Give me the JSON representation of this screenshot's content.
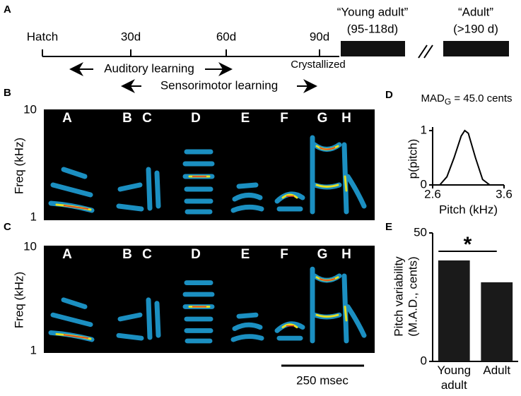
{
  "panel_labels": [
    "A",
    "B",
    "C",
    "D",
    "E"
  ],
  "timeline": {
    "hatch": "Hatch",
    "ticks": [
      "30d",
      "60d",
      "90d"
    ],
    "young_adult": [
      "“Young adult”",
      "(95-118d)"
    ],
    "adult": [
      "“Adult”",
      "(>190 d)"
    ],
    "crystallized": "Crystallized",
    "auditory": "Auditory learning",
    "sensorimotor": "Sensorimotor learning"
  },
  "spectrograms": {
    "syllables": [
      "A",
      "B",
      "C",
      "D",
      "E",
      "F",
      "G",
      "H"
    ],
    "ylabel": "Freq (kHz)",
    "ytick_top": "10",
    "ytick_bottom": "1",
    "scale_bar": "250 msec"
  },
  "chart_data": [
    {
      "type": "line",
      "title": {
        "main": "MAD",
        "subscript": "G",
        "rest": " = 45.0 cents"
      },
      "x": [
        2.7,
        2.8,
        2.9,
        3.0,
        3.05,
        3.1,
        3.2,
        3.3,
        3.4
      ],
      "values": [
        0,
        0.15,
        0.5,
        0.9,
        1.0,
        0.95,
        0.5,
        0.1,
        0
      ],
      "color": "#000000",
      "xlim": [
        2.6,
        3.6
      ],
      "ylim": [
        0,
        1
      ],
      "xticks": [
        2.6,
        3.6
      ],
      "yticks": [
        0,
        1
      ],
      "xlabel": "Pitch (kHz)",
      "ylabel": "p(pitch)"
    },
    {
      "type": "bar",
      "categories": [
        "Young adult",
        "Adult"
      ],
      "values": [
        39.3,
        30.8
      ],
      "color": "#1a1a1a",
      "ylim": [
        0,
        50
      ],
      "yticks": [
        0,
        50
      ],
      "ylabel": [
        "Pitch variability",
        "(M.A.D., cents)"
      ],
      "annotation": "*"
    }
  ]
}
